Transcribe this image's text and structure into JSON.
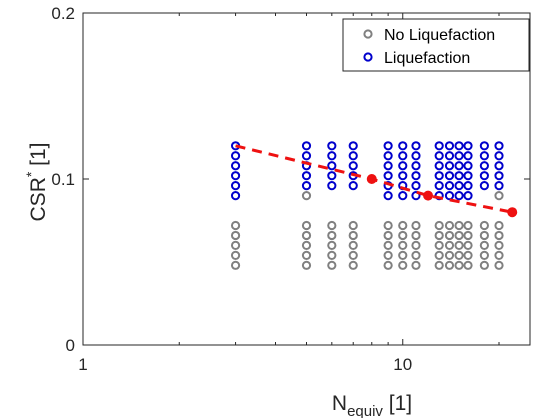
{
  "chart_data": {
    "type": "scatter",
    "xscale": "log",
    "xlim": [
      1,
      25
    ],
    "ylim": [
      0,
      0.2
    ],
    "x_ticks": [
      {
        "value": 1,
        "label": "1"
      },
      {
        "value": 10,
        "label": "10"
      }
    ],
    "y_ticks": [
      {
        "value": 0,
        "label": "0"
      },
      {
        "value": 0.1,
        "label": "0.1"
      },
      {
        "value": 0.2,
        "label": "0.2"
      }
    ],
    "xlabel": {
      "main": "N",
      "sub": "equiv",
      "unit": " [1]"
    },
    "ylabel": {
      "main": "CSR",
      "sup": "*",
      "unit": " [1]"
    },
    "grid": false,
    "legend_position": "top-right",
    "series": [
      {
        "name": "No Liquefaction",
        "color": "#808080",
        "marker": "open-circle",
        "columns": [
          {
            "x": 3,
            "y": [
              0.048,
              0.054,
              0.06,
              0.066,
              0.072
            ]
          },
          {
            "x": 5,
            "y": [
              0.048,
              0.054,
              0.06,
              0.066,
              0.072
            ]
          },
          {
            "x": 6,
            "y": [
              0.048,
              0.054,
              0.06,
              0.066,
              0.072
            ]
          },
          {
            "x": 7,
            "y": [
              0.048,
              0.054,
              0.06,
              0.066,
              0.072
            ]
          },
          {
            "x": 9,
            "y": [
              0.048,
              0.054,
              0.06,
              0.066,
              0.072
            ]
          },
          {
            "x": 10,
            "y": [
              0.048,
              0.054,
              0.06,
              0.066,
              0.072
            ]
          },
          {
            "x": 11,
            "y": [
              0.048,
              0.054,
              0.06,
              0.066,
              0.072
            ]
          },
          {
            "x": 13,
            "y": [
              0.048,
              0.054,
              0.06,
              0.066,
              0.072
            ]
          },
          {
            "x": 14,
            "y": [
              0.048,
              0.054,
              0.06,
              0.066,
              0.072
            ]
          },
          {
            "x": 15,
            "y": [
              0.048,
              0.054,
              0.06,
              0.066,
              0.072
            ]
          },
          {
            "x": 16,
            "y": [
              0.048,
              0.054,
              0.06,
              0.066,
              0.072
            ]
          },
          {
            "x": 18,
            "y": [
              0.048,
              0.054,
              0.06,
              0.066,
              0.072
            ]
          },
          {
            "x": 20,
            "y": [
              0.048,
              0.054,
              0.06,
              0.066,
              0.072
            ]
          },
          {
            "x": 5,
            "y": [
              0.09
            ]
          },
          {
            "x": 20,
            "y": [
              0.09
            ]
          }
        ]
      },
      {
        "name": "Liquefaction",
        "color": "#0000cc",
        "marker": "open-circle",
        "columns": [
          {
            "x": 3,
            "y": [
              0.096,
              0.102,
              0.108,
              0.114,
              0.12
            ]
          },
          {
            "x": 5,
            "y": [
              0.096,
              0.102,
              0.108,
              0.114,
              0.12
            ]
          },
          {
            "x": 6,
            "y": [
              0.096,
              0.102,
              0.108,
              0.114,
              0.12
            ]
          },
          {
            "x": 7,
            "y": [
              0.096,
              0.102,
              0.108,
              0.114,
              0.12
            ]
          },
          {
            "x": 9,
            "y": [
              0.09,
              0.096,
              0.102,
              0.108,
              0.114,
              0.12
            ]
          },
          {
            "x": 10,
            "y": [
              0.09,
              0.096,
              0.102,
              0.108,
              0.114,
              0.12
            ]
          },
          {
            "x": 11,
            "y": [
              0.09,
              0.096,
              0.102,
              0.108,
              0.114,
              0.12
            ]
          },
          {
            "x": 13,
            "y": [
              0.09,
              0.096,
              0.102,
              0.108,
              0.114,
              0.12
            ]
          },
          {
            "x": 14,
            "y": [
              0.09,
              0.096,
              0.102,
              0.108,
              0.114,
              0.12
            ]
          },
          {
            "x": 15,
            "y": [
              0.09,
              0.096,
              0.102,
              0.108,
              0.114,
              0.12
            ]
          },
          {
            "x": 16,
            "y": [
              0.09,
              0.096,
              0.102,
              0.108,
              0.114,
              0.12
            ]
          },
          {
            "x": 18,
            "y": [
              0.096,
              0.102,
              0.108,
              0.114,
              0.12
            ]
          },
          {
            "x": 20,
            "y": [
              0.096,
              0.102,
              0.108,
              0.114,
              0.12
            ]
          },
          {
            "x": 3,
            "y": [
              0.09
            ]
          }
        ]
      }
    ],
    "trend_line": {
      "color": "#ee1111",
      "style": "dashed",
      "x": [
        3,
        8,
        12,
        22
      ],
      "y": [
        0.12,
        0.1,
        0.09,
        0.08
      ],
      "markers": [
        {
          "x": 8,
          "y": 0.1
        },
        {
          "x": 12,
          "y": 0.09
        },
        {
          "x": 22,
          "y": 0.08
        }
      ]
    }
  }
}
